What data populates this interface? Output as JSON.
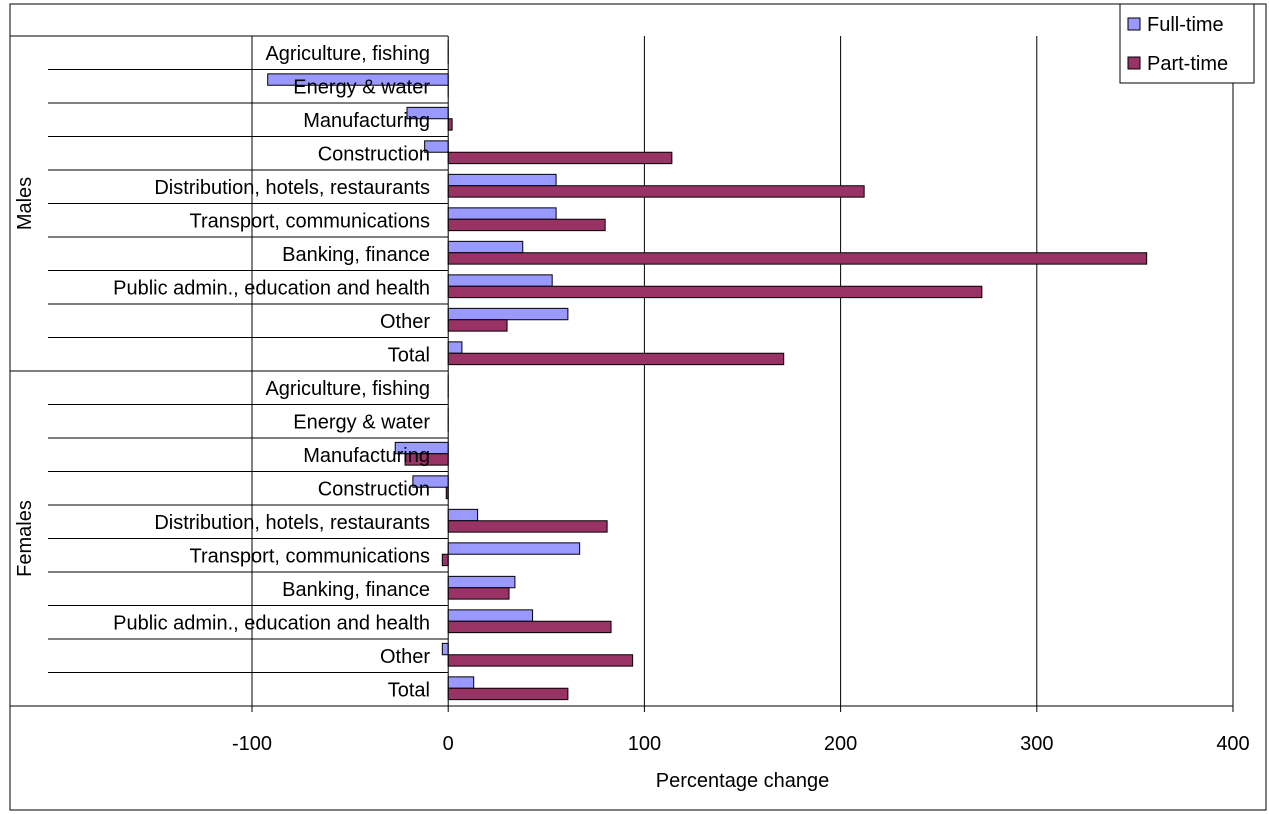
{
  "chart_data": {
    "type": "bar",
    "orientation": "horizontal",
    "xlabel": "Percentage change",
    "xlim": [
      -100,
      400
    ],
    "xticks": [
      -100,
      0,
      100,
      200,
      300,
      400
    ],
    "grid": true,
    "legend_position": "top-right",
    "groups": [
      {
        "name": "Males",
        "categories": [
          "Agriculture, fishing",
          "Energy & water",
          "Manufacturing",
          "Construction",
          "Distribution, hotels, restaurants",
          "Transport, communications",
          "Banking, finance",
          "Public admin., education and health",
          "Other",
          "Total"
        ]
      },
      {
        "name": "Females",
        "categories": [
          "Agriculture, fishing",
          "Energy & water",
          "Manufacturing",
          "Construction",
          "Distribution, hotels, restaurants",
          "Transport, communications",
          "Banking, finance",
          "Public admin., education and health",
          "Other",
          "Total"
        ]
      }
    ],
    "series": [
      {
        "name": "Full-time",
        "color": "#9999ff",
        "values": [
          0,
          -92,
          -21,
          -12,
          55,
          55,
          38,
          53,
          61,
          7,
          0,
          0,
          -27,
          -18,
          15,
          67,
          34,
          43,
          -3,
          13
        ]
      },
      {
        "name": "Part-time",
        "color": "#993366",
        "values": [
          0,
          0,
          2,
          114,
          212,
          80,
          356,
          272,
          30,
          171,
          0,
          0,
          -22,
          -1,
          81,
          -3,
          31,
          83,
          94,
          61
        ]
      }
    ]
  }
}
